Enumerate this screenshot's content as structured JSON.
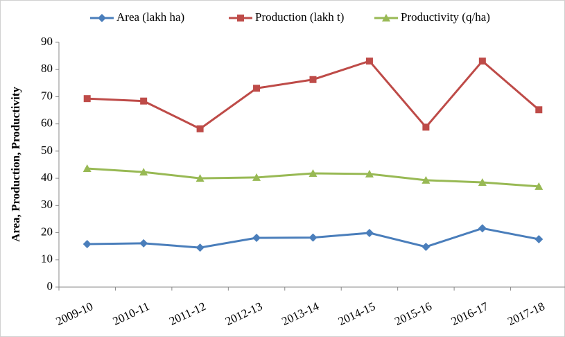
{
  "chart_data": {
    "type": "line",
    "y_label": "Area, Production, Productivity",
    "categories": [
      "2009-10",
      "2010-11",
      "2011-12",
      "2012-13",
      "2013-14",
      "2014-15",
      "2015-16",
      "2016-17",
      "2017-18"
    ],
    "series": [
      {
        "name": "Area (lakh ha)",
        "color": "#4a7ebb",
        "marker": "diamond",
        "values": [
          15.8,
          16.1,
          14.5,
          18.1,
          18.2,
          19.9,
          14.8,
          21.6,
          17.6
        ]
      },
      {
        "name": "Production (lakh t)",
        "color": "#be4b48",
        "marker": "square",
        "values": [
          69.3,
          68.4,
          58.2,
          73.1,
          76.3,
          83.1,
          58.8,
          83.1,
          65.2
        ]
      },
      {
        "name": "Productivity (q/ha)",
        "color": "#98b954",
        "marker": "triangle",
        "values": [
          43.6,
          42.3,
          40.0,
          40.3,
          41.8,
          41.6,
          39.3,
          38.5,
          37.0
        ]
      }
    ],
    "ylim": [
      0,
      90
    ],
    "yticks": [
      0,
      10,
      20,
      30,
      40,
      50,
      60,
      70,
      80,
      90
    ],
    "grid": false,
    "legend": "top"
  }
}
